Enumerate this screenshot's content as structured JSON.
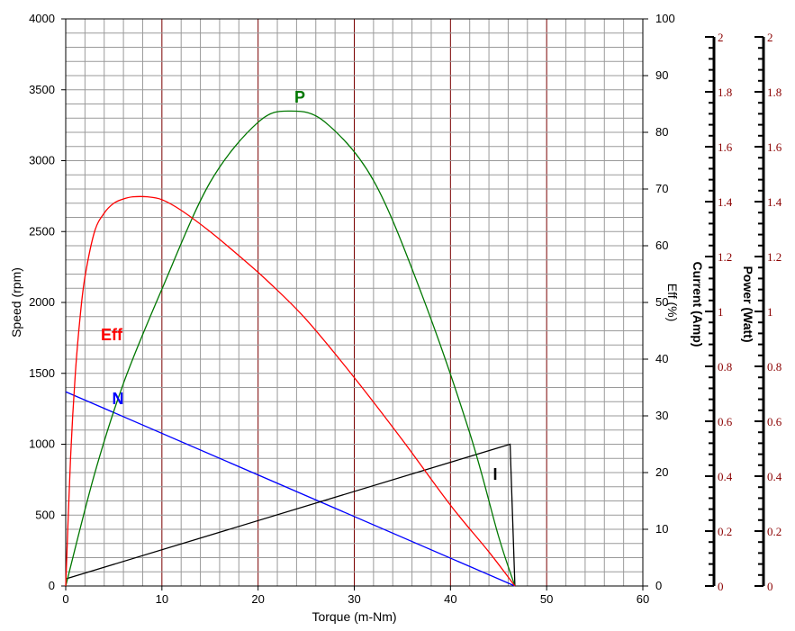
{
  "chart_data": {
    "type": "line",
    "xlabel": "Torque (m-Nm)",
    "xlim": [
      0,
      60
    ],
    "x_ticks": [
      "0",
      "10",
      "20",
      "30",
      "40",
      "50",
      "60"
    ],
    "y_left": {
      "label": "Speed (rpm)",
      "lim": [
        0,
        4000
      ],
      "ticks": [
        "0",
        "500",
        "1000",
        "1500",
        "2000",
        "2500",
        "3000",
        "3500",
        "4000"
      ]
    },
    "y_eff": {
      "label": "Eff (%)",
      "color": "#ff0000",
      "lim": [
        0,
        100
      ],
      "ticks": [
        "0",
        "10",
        "20",
        "30",
        "40",
        "50",
        "60",
        "70",
        "80",
        "90",
        "100"
      ]
    },
    "y_current": {
      "label": "Current (Amp)",
      "color": "#000000",
      "lim": [
        0,
        2
      ],
      "ticks": [
        "0",
        "0.2",
        "0.4",
        "0.6",
        "0.8",
        "1",
        "1.2",
        "1.4",
        "1.6",
        "1.8",
        "2"
      ]
    },
    "y_power": {
      "label": "Power (Watt)",
      "color": "#007700",
      "lim": [
        0,
        2
      ],
      "ticks": [
        "0",
        "0.2",
        "0.4",
        "0.6",
        "0.8",
        "1",
        "1.2",
        "1.4",
        "1.6",
        "1.8",
        "2"
      ]
    },
    "grid": true,
    "series": [
      {
        "name": "N",
        "axis": "y_left",
        "color": "#0000ff",
        "x": [
          0,
          46.7
        ],
        "y": [
          1370,
          0
        ]
      },
      {
        "name": "I",
        "axis": "y_left",
        "color": "#000000",
        "x": [
          0,
          46.2,
          46.7
        ],
        "y": [
          50,
          1000,
          0
        ]
      },
      {
        "name": "P",
        "axis": "y_left",
        "color": "#007700",
        "x": [
          0,
          3,
          6,
          10,
          15,
          20,
          23.35,
          27,
          32,
          37,
          42,
          45,
          46.7
        ],
        "y": [
          0,
          791,
          1429,
          2094,
          2846,
          3271,
          3350,
          3270,
          2860,
          2060,
          1080,
          350,
          0
        ]
      },
      {
        "name": "Eff",
        "axis": "y_left",
        "color": "#ff0000",
        "x": [
          0,
          0.5,
          1,
          1.5,
          2,
          3,
          4,
          5,
          6,
          7,
          8.5,
          10,
          12,
          15,
          18,
          21,
          25,
          30,
          35,
          40,
          44,
          46.7
        ],
        "y": [
          0,
          900,
          1500,
          1900,
          2180,
          2500,
          2630,
          2700,
          2730,
          2745,
          2745,
          2725,
          2650,
          2500,
          2330,
          2150,
          1880,
          1470,
          1030,
          570,
          240,
          0
        ]
      }
    ]
  }
}
